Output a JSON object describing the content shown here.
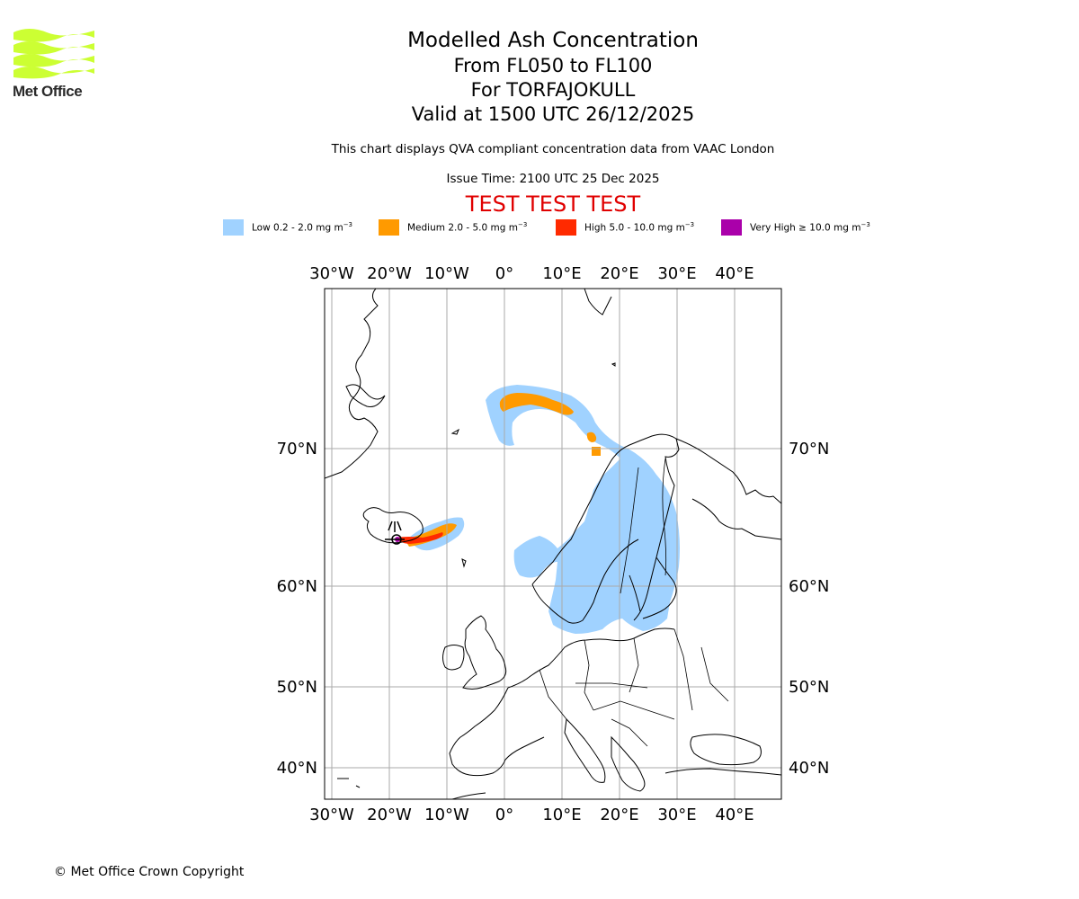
{
  "logo": {
    "text": "Met Office",
    "color": "#ccff33"
  },
  "title": {
    "line1": "Modelled Ash Concentration",
    "line2": "From FL050 to FL100",
    "line3": "For TORFAJOKULL",
    "line4": "Valid at 1500 UTC 26/12/2025"
  },
  "subtitle": "This chart displays QVA compliant concentration data from VAAC London",
  "issue_time": "Issue Time: 2100 UTC 25 Dec 2025",
  "test_banner": "TEST TEST TEST",
  "legend": [
    {
      "label": "Low 0.2 - 2.0 mg m",
      "color": "#a0d2ff"
    },
    {
      "label": "Medium 2.0 - 5.0 mg m",
      "color": "#ff9a00"
    },
    {
      "label": "High 5.0 - 10.0 mg m",
      "color": "#ff2a00"
    },
    {
      "label": "Very High ≥ 10.0 mg m",
      "color": "#aa00aa"
    }
  ],
  "legend_unit_exp": "−3",
  "map": {
    "lon_labels": [
      "30°W",
      "20°W",
      "10°W",
      "0°",
      "10°E",
      "20°E",
      "30°E",
      "40°E"
    ],
    "lat_labels": [
      "70°N",
      "60°N",
      "50°N",
      "40°N"
    ],
    "grid_color": "#aaaaaa"
  },
  "copyright": "© Met Office Crown Copyright"
}
